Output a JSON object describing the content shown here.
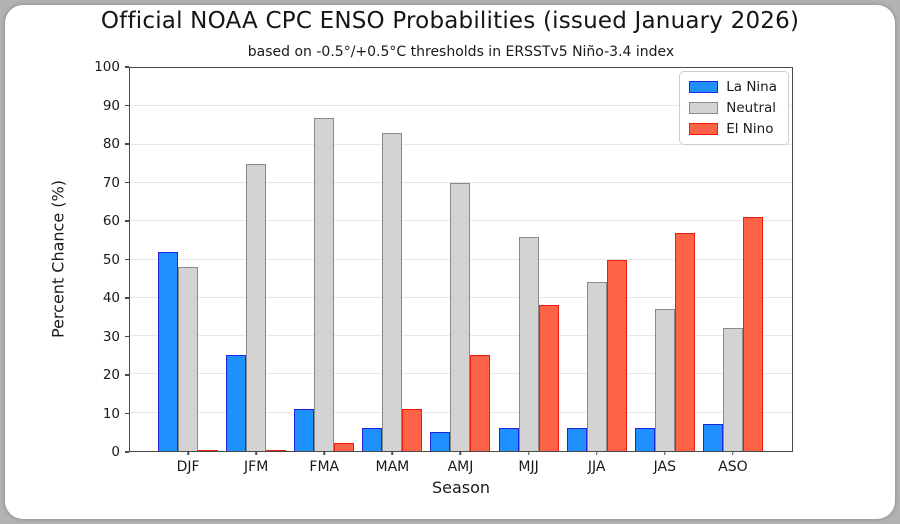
{
  "window": {
    "background_color": "#b2b2b2",
    "card_color": "#ffffff"
  },
  "chart_data": {
    "type": "bar",
    "title": "Official NOAA CPC ENSO Probabilities (issued January 2026)",
    "subtitle": "based on -0.5°/+0.5°C thresholds in ERSSTv5 Niño-3.4 index",
    "xlabel": "Season",
    "ylabel": "Percent Chance (%)",
    "categories": [
      "DJF",
      "JFM",
      "FMA",
      "MAM",
      "AMJ",
      "MJJ",
      "JJA",
      "JAS",
      "ASO"
    ],
    "series": [
      {
        "name": "La Nina",
        "color": "#1E90FF",
        "edge": "#2323DD",
        "values": [
          52,
          25,
          11,
          6,
          5,
          6,
          6,
          6,
          7
        ]
      },
      {
        "name": "Neutral",
        "color": "#D3D3D3",
        "edge": "#8A8A8A",
        "values": [
          48,
          75,
          87,
          83,
          70,
          56,
          44,
          37,
          32
        ]
      },
      {
        "name": "El Nino",
        "color": "#FF6347",
        "edge": "#ED1C0C",
        "values": [
          0,
          0,
          2,
          11,
          25,
          38,
          50,
          57,
          61
        ]
      }
    ],
    "ylim": [
      0,
      100
    ],
    "yticks": [
      0,
      10,
      20,
      30,
      40,
      50,
      60,
      70,
      80,
      90,
      100
    ],
    "grid": true,
    "legend_position": "upper right"
  }
}
